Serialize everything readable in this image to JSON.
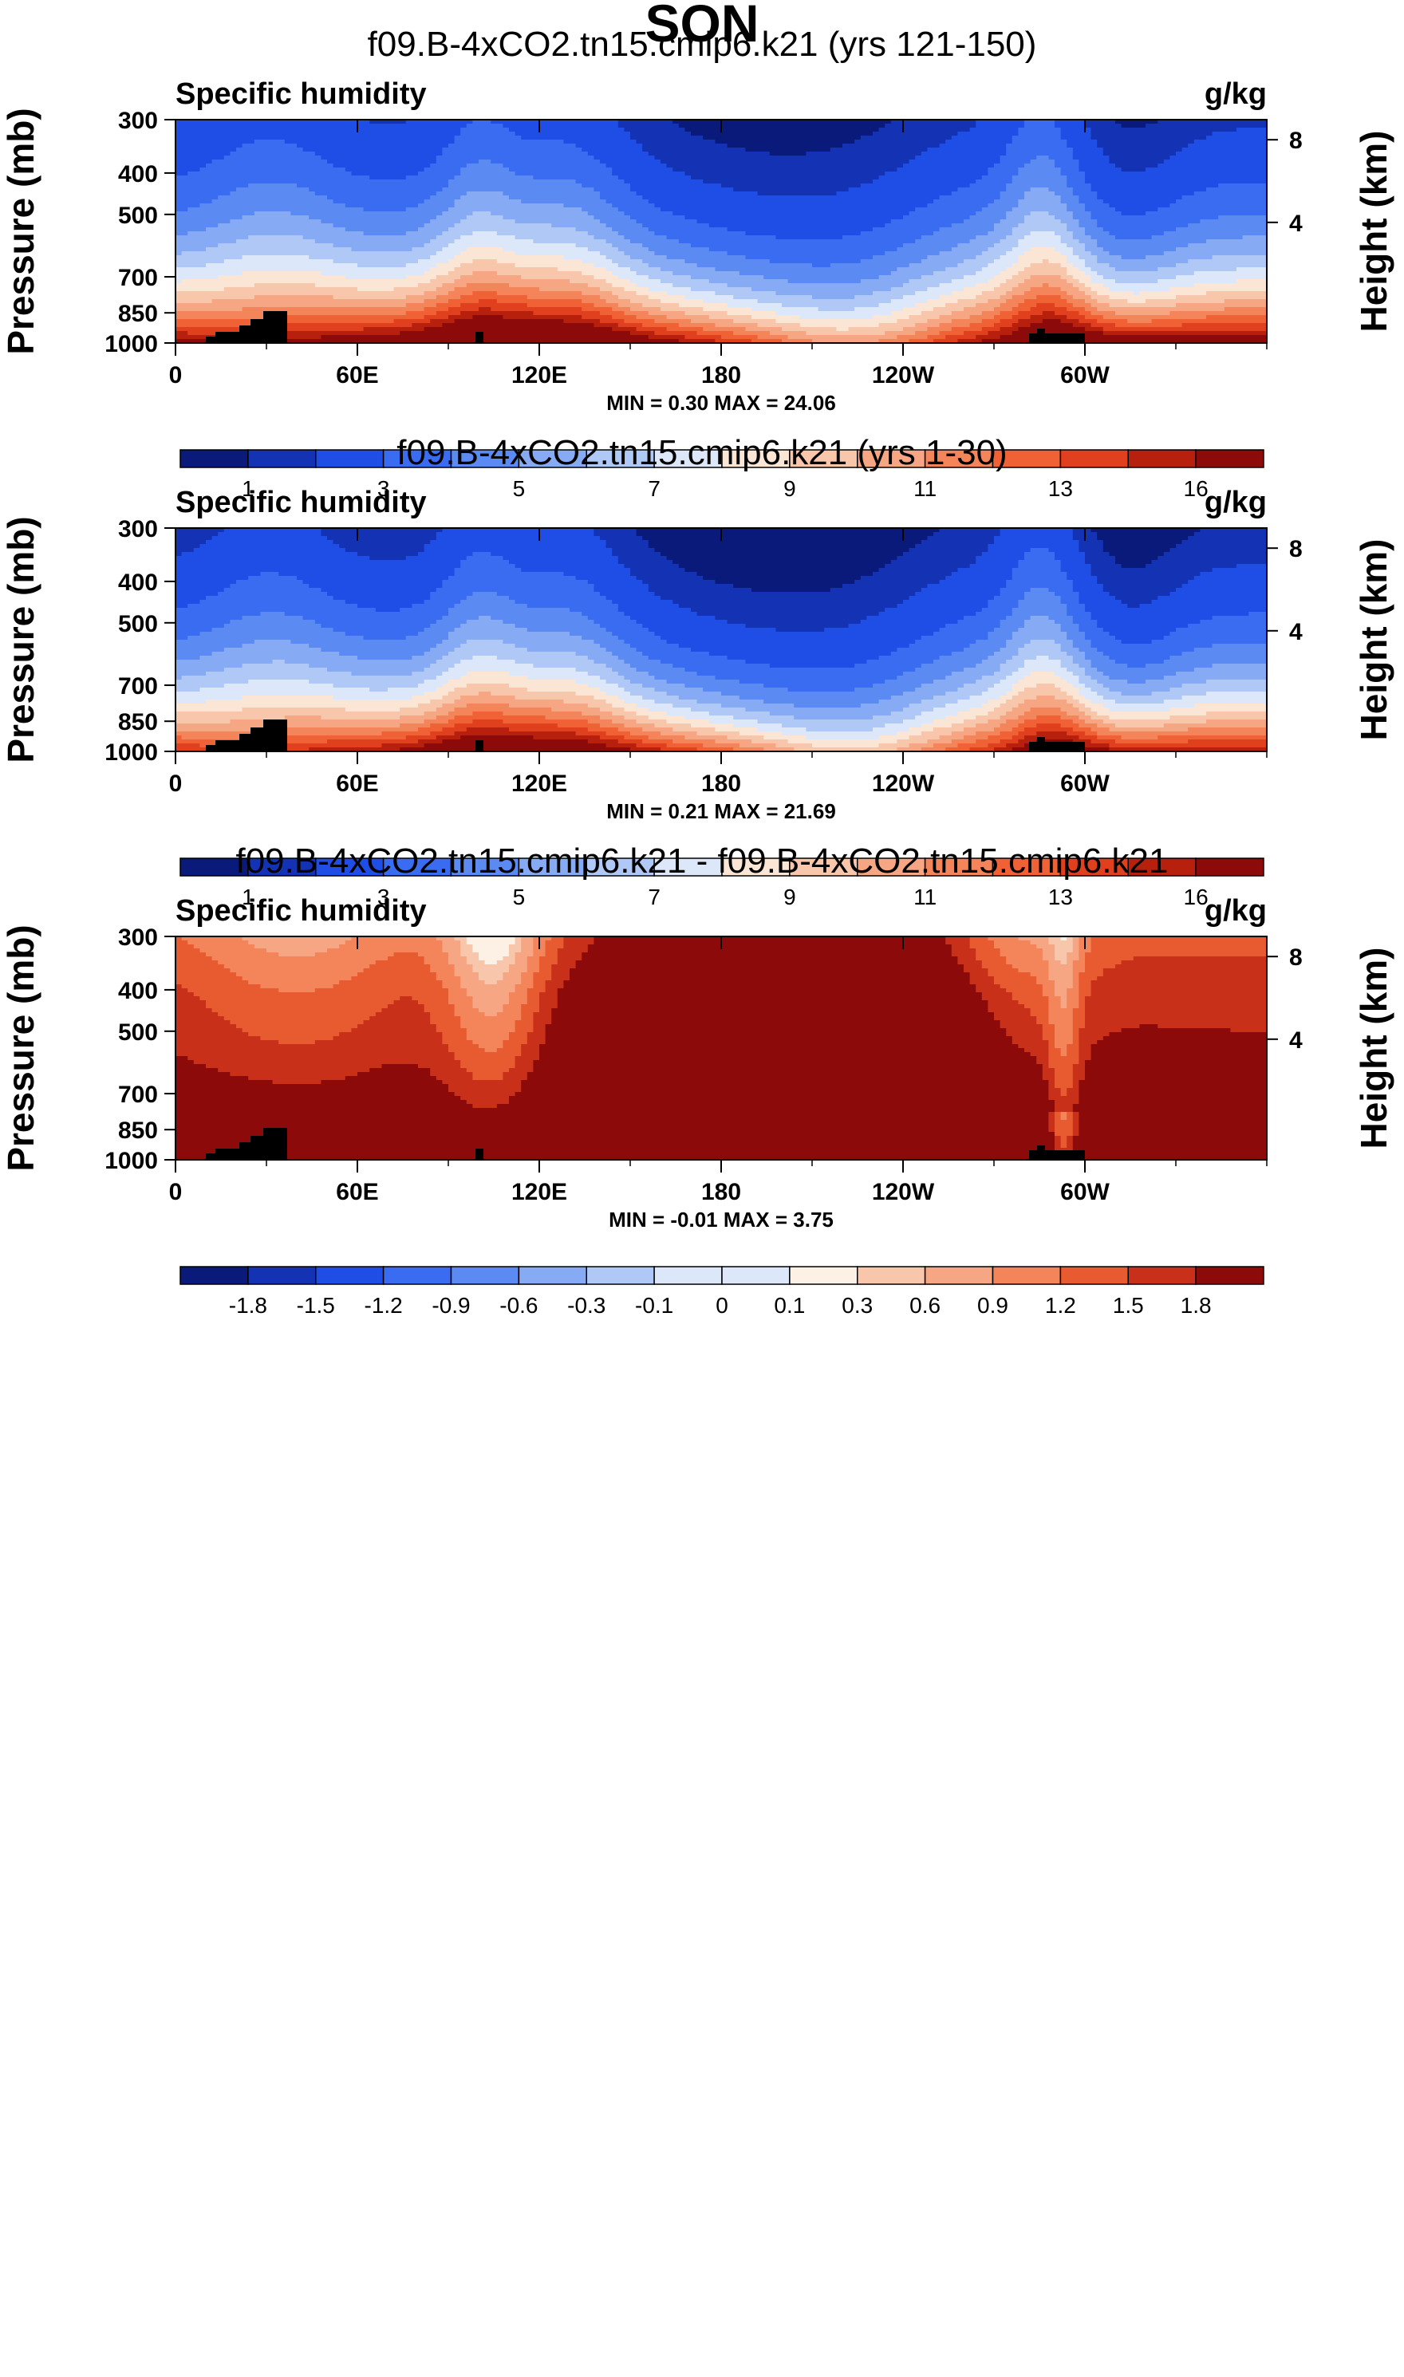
{
  "page_title": "SON",
  "chart_data": [
    {
      "type": "contour",
      "title": "f09.B-4xCO2.tn15.cmip6.k21 (yrs 121-150)",
      "left_label": "Specific humidity",
      "right_label": "g/kg",
      "ylabel": "Pressure (mb)",
      "ylabel_right": "Height (km)",
      "x_ticks": [
        "0",
        "60E",
        "120E",
        "180",
        "120W",
        "60W"
      ],
      "y_ticks": [
        "300",
        "400",
        "500",
        "700",
        "850",
        "1000"
      ],
      "height_ticks": [
        "8",
        "4"
      ],
      "stats": "MIN =   0.30  MAX =  24.06",
      "colorbar_labels": [
        "1",
        "3",
        "5",
        "7",
        "9",
        "11",
        "13",
        "16"
      ],
      "levels": [
        0.5,
        1,
        2,
        3,
        4,
        5,
        6,
        7,
        8,
        9,
        10,
        11,
        12,
        13,
        14,
        16
      ]
    },
    {
      "type": "contour",
      "title": "f09.B-4xCO2.tn15.cmip6.k21 (yrs 1-30)",
      "left_label": "Specific humidity",
      "right_label": "g/kg",
      "ylabel": "Pressure (mb)",
      "ylabel_right": "Height (km)",
      "x_ticks": [
        "0",
        "60E",
        "120E",
        "180",
        "120W",
        "60W"
      ],
      "y_ticks": [
        "300",
        "400",
        "500",
        "700",
        "850",
        "1000"
      ],
      "height_ticks": [
        "8",
        "4"
      ],
      "stats": "MIN =   0.21  MAX =  21.69",
      "colorbar_labels": [
        "1",
        "3",
        "5",
        "7",
        "9",
        "11",
        "13",
        "16"
      ],
      "levels": [
        0.5,
        1,
        2,
        3,
        4,
        5,
        6,
        7,
        8,
        9,
        10,
        11,
        12,
        13,
        14,
        16
      ]
    },
    {
      "type": "contour",
      "title": "f09.B-4xCO2.tn15.cmip6.k21 - f09.B-4xCO2.tn15.cmip6.k21",
      "left_label": "Specific humidity",
      "right_label": "g/kg",
      "ylabel": "Pressure (mb)",
      "ylabel_right": "Height (km)",
      "x_ticks": [
        "0",
        "60E",
        "120E",
        "180",
        "120W",
        "60W"
      ],
      "y_ticks": [
        "300",
        "400",
        "500",
        "700",
        "850",
        "1000"
      ],
      "height_ticks": [
        "8",
        "4"
      ],
      "stats": "MIN =  -0.01  MAX =   3.75",
      "colorbar_labels": [
        "-1.8",
        "-1.5",
        "-1.2",
        "-0.9",
        "-0.6",
        "-0.3",
        "-0.1",
        "0",
        "0.1",
        "0.3",
        "0.6",
        "0.9",
        "1.2",
        "1.5",
        "1.8"
      ],
      "levels": [
        -1.8,
        -1.5,
        -1.2,
        -0.9,
        -0.6,
        -0.3,
        -0.1,
        0,
        0.1,
        0.3,
        0.6,
        0.9,
        1.2,
        1.5,
        1.8
      ]
    }
  ],
  "palette": [
    "#0a1a7a",
    "#1432b4",
    "#1e4ee6",
    "#3a6cf2",
    "#5a8af2",
    "#86aaf4",
    "#b0c8f6",
    "#dce8fa",
    "#fbe6d6",
    "#f8c6aa",
    "#f6a682",
    "#f4845a",
    "#f06236",
    "#e0401e",
    "#b8200e",
    "#8c0a0a"
  ]
}
